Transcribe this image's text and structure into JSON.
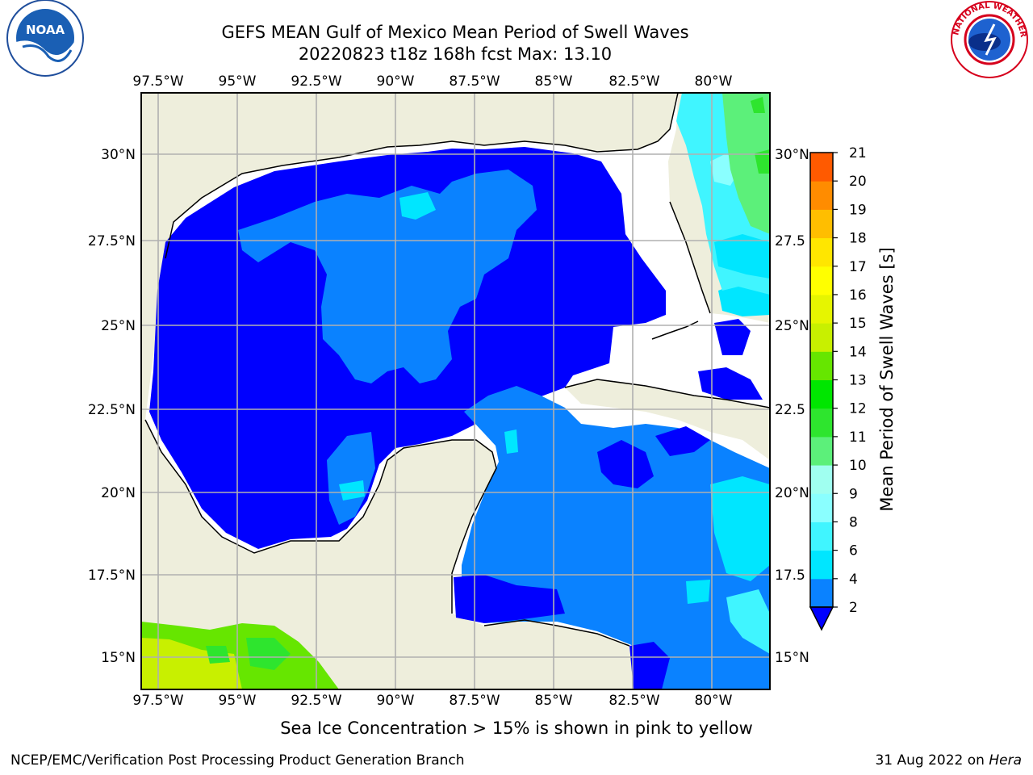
{
  "title": {
    "line1": "GEFS MEAN Gulf of Mexico Mean Period of Swell Waves",
    "line2": "20220823 t18z 168h fcst   Max: 13.10"
  },
  "map": {
    "region": "Gulf of Mexico",
    "variable": "Mean Period of Swell Waves",
    "units": "s",
    "max_value": 13.1,
    "lon_ticks": [
      "97.5°W",
      "95°W",
      "92.5°W",
      "90°W",
      "87.5°W",
      "85°W",
      "82.5°W",
      "80°W"
    ],
    "lat_ticks": [
      "30°N",
      "27.5°N",
      "25°N",
      "22.5°N",
      "20°N",
      "17.5°N",
      "15°N"
    ],
    "lat_ticks_right": [
      "30°N",
      "27.5",
      "25°N",
      "22.5",
      "20°N",
      "17.5",
      "15°N"
    ],
    "land_color": "#eeeedc",
    "grid_color": "#b0b0b0"
  },
  "colorbar": {
    "label": "Mean Period of Swell Waves [s]",
    "ticks": [
      "2",
      "4",
      "6",
      "8",
      "9",
      "10",
      "11",
      "12",
      "13",
      "14",
      "15",
      "16",
      "17",
      "18",
      "19",
      "20",
      "21"
    ],
    "colors": [
      "#0a82ff",
      "#00e6ff",
      "#40f5ff",
      "#8affff",
      "#a0fff0",
      "#5cf07a",
      "#2ee52e",
      "#00e600",
      "#66e600",
      "#c8f000",
      "#e6f500",
      "#ffff00",
      "#ffe600",
      "#ffbe00",
      "#ff8c00",
      "#ff5a00",
      "#ff2800",
      "#ff0000"
    ],
    "extend_color": "#0000ff"
  },
  "footer": {
    "note": "Sea Ice Concentration > 15% is shown in pink to yellow",
    "credit": "NCEP/EMC/Verification Post Processing Product Generation Branch",
    "date": "31 Aug 2022 on",
    "machine": "Hera"
  },
  "logos": {
    "noaa": "NOAA",
    "nws": "NATIONAL WEATHER SERVICE"
  }
}
